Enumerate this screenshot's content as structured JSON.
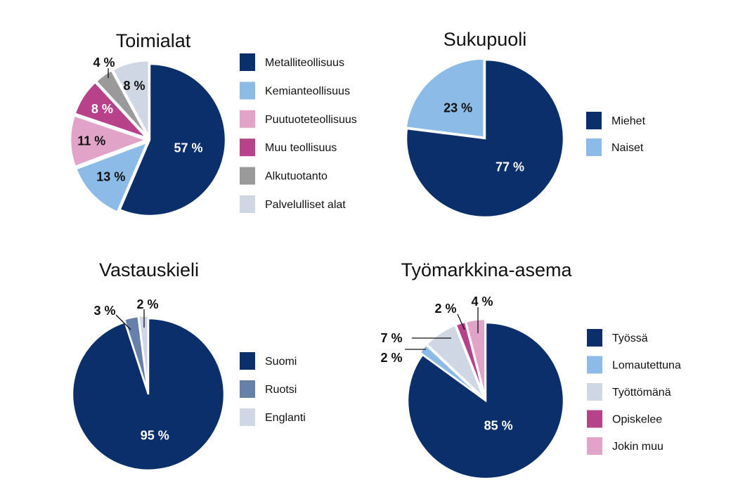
{
  "chart_data": [
    {
      "type": "pie",
      "title": "Toimialat",
      "categories": [
        "Metalliteollisuus",
        "Kemianteollisuus",
        "Puutuoteteollisuus",
        "Muu teollisuus",
        "Alkutuotanto",
        "Palvelulliset alat"
      ],
      "values": [
        57,
        13,
        11,
        8,
        4,
        8
      ],
      "labels": [
        "57 %",
        "13 %",
        "11 %",
        "8 %",
        "4 %",
        "8 %"
      ],
      "colors": [
        "#0b2f6b",
        "#8bbbe6",
        "#e1a3c8",
        "#b8428a",
        "#9a9a9a",
        "#cfd6e4"
      ],
      "legend": "right"
    },
    {
      "type": "pie",
      "title": "Sukupuoli",
      "categories": [
        "Miehet",
        "Naiset"
      ],
      "values": [
        77,
        23
      ],
      "labels": [
        "77 %",
        "23 %"
      ],
      "colors": [
        "#0b2f6b",
        "#8bbbe6"
      ],
      "legend": "right"
    },
    {
      "type": "pie",
      "title": "Vastauskieli",
      "categories": [
        "Suomi",
        "Ruotsi",
        "Englanti"
      ],
      "values": [
        95,
        3,
        2
      ],
      "labels": [
        "95 %",
        "3 %",
        "2 %"
      ],
      "colors": [
        "#0b2f6b",
        "#6680aa",
        "#cfd6e4"
      ],
      "legend": "right"
    },
    {
      "type": "pie",
      "title": "Työmarkkina-asema",
      "categories": [
        "Työssä",
        "Lomautettuna",
        "Työttömänä",
        "Opiskelee",
        "Jokin muu"
      ],
      "values": [
        85,
        2,
        7,
        2,
        4
      ],
      "labels": [
        "85 %",
        "2 %",
        "7 %",
        "2 %",
        "4 %"
      ],
      "colors": [
        "#0b2f6b",
        "#8bbbe6",
        "#cfd6e4",
        "#b8428a",
        "#e1a3c8"
      ],
      "legend": "right"
    }
  ]
}
